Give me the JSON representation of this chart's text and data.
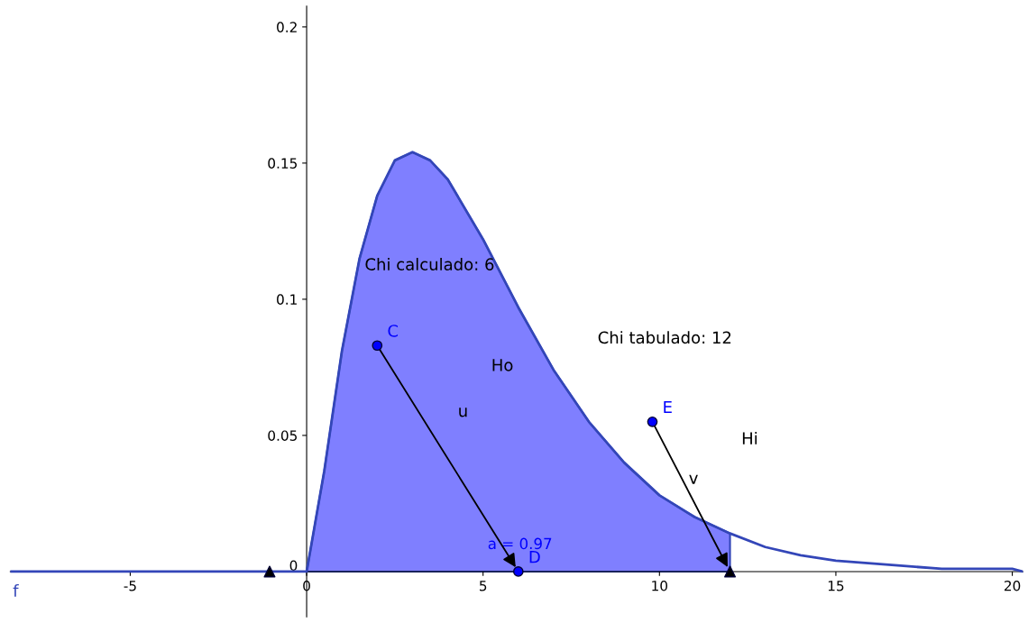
{
  "chart_data": {
    "type": "line",
    "xlim": [
      -8.4,
      20.3
    ],
    "ylim": [
      -0.0166,
      0.2076
    ],
    "xticks": [
      -5,
      0,
      5,
      10,
      15,
      20
    ],
    "yticks": [
      0,
      0.05,
      0.1,
      0.15,
      0.2
    ],
    "grid": false,
    "series": [
      {
        "type": "area",
        "name": "a = 0.97",
        "color": "#7f7fff",
        "x": [
          0,
          0.5,
          1,
          1.5,
          2,
          2.5,
          3,
          3.5,
          4,
          5,
          6,
          7,
          8,
          9,
          10,
          11,
          12
        ],
        "values": [
          0,
          0.037,
          0.081,
          0.115,
          0.138,
          0.151,
          0.154,
          0.151,
          0.144,
          0.122,
          0.097,
          0.074,
          0.055,
          0.04,
          0.028,
          0.02,
          0.014
        ]
      },
      {
        "name": "f",
        "color": "#3346b8",
        "x": [
          -8.4,
          0,
          0.5,
          1,
          1.5,
          2,
          2.5,
          3,
          3.5,
          4,
          5,
          6,
          7,
          8,
          9,
          10,
          11,
          12,
          13,
          14,
          15,
          16,
          17,
          18,
          19,
          20,
          20.3
        ],
        "values": [
          0,
          0,
          0.037,
          0.081,
          0.115,
          0.138,
          0.151,
          0.154,
          0.151,
          0.144,
          0.122,
          0.097,
          0.074,
          0.055,
          0.04,
          0.028,
          0.02,
          0.014,
          0.009,
          0.006,
          0.004,
          0.003,
          0.002,
          0.001,
          0.001,
          0.001,
          0.0
        ]
      },
      {
        "type": "scatter",
        "name": "C",
        "color": "#0000ff",
        "marker": "circle",
        "x": [
          2
        ],
        "values": [
          0.083
        ]
      },
      {
        "type": "scatter",
        "name": "D",
        "color": "#0000ff",
        "marker": "circle",
        "x": [
          6
        ],
        "values": [
          0
        ]
      },
      {
        "type": "scatter",
        "name": "E",
        "color": "#0000ff",
        "marker": "circle",
        "x": [
          9.8
        ],
        "values": [
          0.055
        ]
      },
      {
        "type": "scatter",
        "color": "#000000",
        "marker": "triangle",
        "x": [
          -1.05,
          12
        ],
        "values": [
          0,
          0
        ]
      }
    ],
    "annotations": [
      "Chi calculado: 6",
      "Ho",
      "Chi tabulado: 12",
      "Hi",
      "u",
      "v"
    ]
  }
}
